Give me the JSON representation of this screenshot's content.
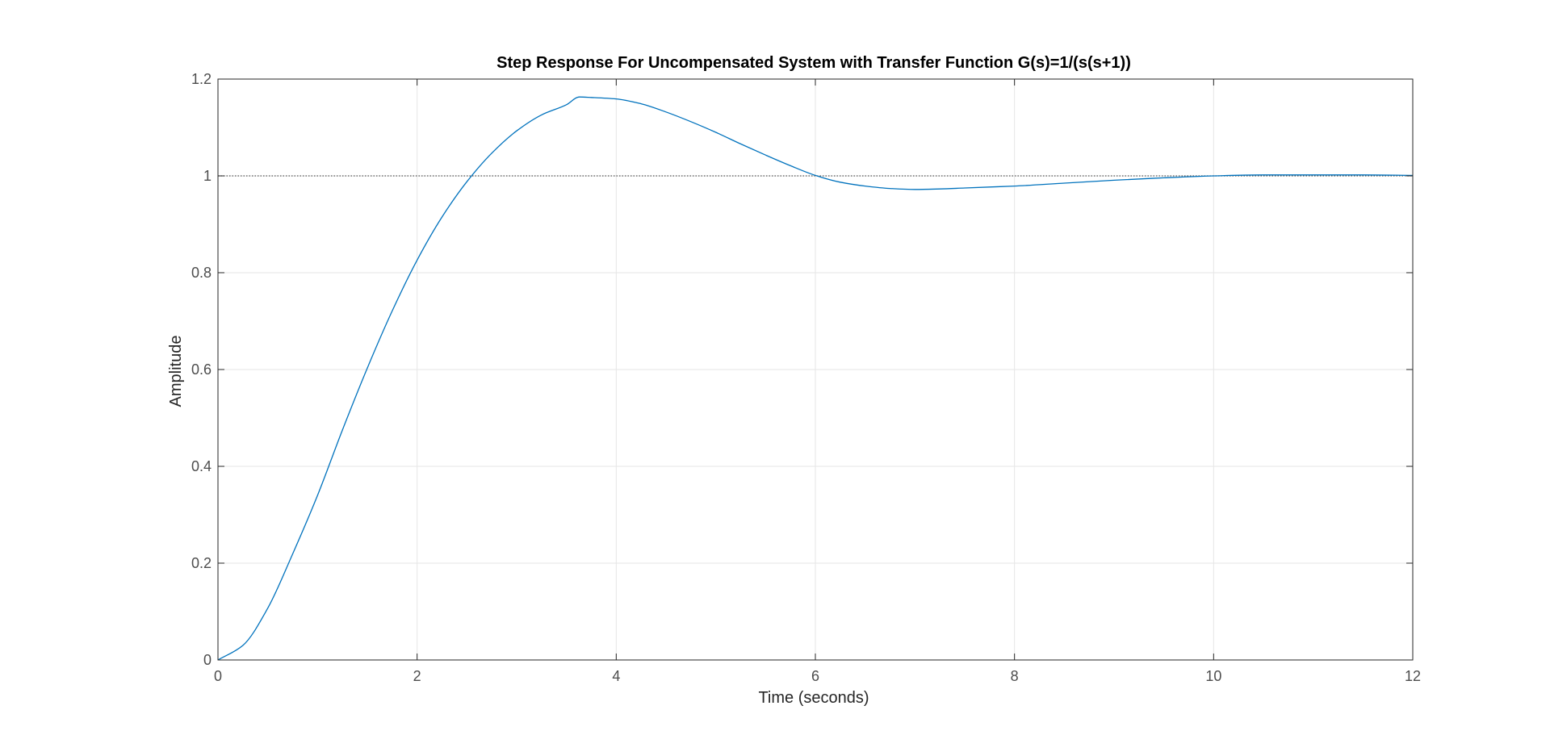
{
  "chart_data": {
    "type": "line",
    "title": "Step Response For Uncompensated System with Transfer Function G(s)=1/(s(s+1))",
    "xlabel": "Time (seconds)",
    "ylabel": "Amplitude",
    "xlim": [
      0,
      12
    ],
    "ylim": [
      0,
      1.2
    ],
    "x_ticks": [
      0,
      2,
      4,
      6,
      8,
      10,
      12
    ],
    "x_tick_labels": [
      "0",
      "2",
      "4",
      "6",
      "8",
      "10",
      "12"
    ],
    "y_ticks": [
      0,
      0.2,
      0.4,
      0.6,
      0.8,
      1,
      1.2
    ],
    "y_tick_labels": [
      "0",
      "0.2",
      "0.4",
      "0.6",
      "0.8",
      "1",
      "1.2"
    ],
    "grid": true,
    "series": [
      {
        "color": "#0072bd",
        "x": [
          0,
          0.25,
          0.5,
          0.75,
          1,
          1.25,
          1.5,
          1.75,
          2,
          2.25,
          2.5,
          2.75,
          3,
          3.25,
          3.5,
          3.63,
          3.75,
          4,
          4.25,
          4.5,
          4.75,
          5,
          5.25,
          5.5,
          5.75,
          6,
          6.25,
          6.5,
          6.75,
          7,
          7.25,
          7.5,
          7.75,
          8,
          8.5,
          9,
          9.5,
          10,
          10.5,
          11,
          11.5,
          12
        ],
        "y": [
          0,
          0.03,
          0.107,
          0.219,
          0.34,
          0.475,
          0.603,
          0.721,
          0.826,
          0.915,
          0.988,
          1.047,
          1.093,
          1.126,
          1.147,
          1.163,
          1.162,
          1.159,
          1.149,
          1.132,
          1.112,
          1.09,
          1.066,
          1.043,
          1.021,
          1.001,
          0.987,
          0.979,
          0.974,
          0.972,
          0.973,
          0.975,
          0.977,
          0.979,
          0.985,
          0.991,
          0.996,
          1.0,
          1.002,
          1.002,
          1.002,
          1.001
        ]
      }
    ],
    "reference_lines": [
      {
        "y": 1,
        "style": "dotted",
        "color": "#555555"
      }
    ],
    "colors": {
      "grid": "#e6e6e6",
      "axes": "#262626",
      "background": "#ffffff"
    }
  }
}
